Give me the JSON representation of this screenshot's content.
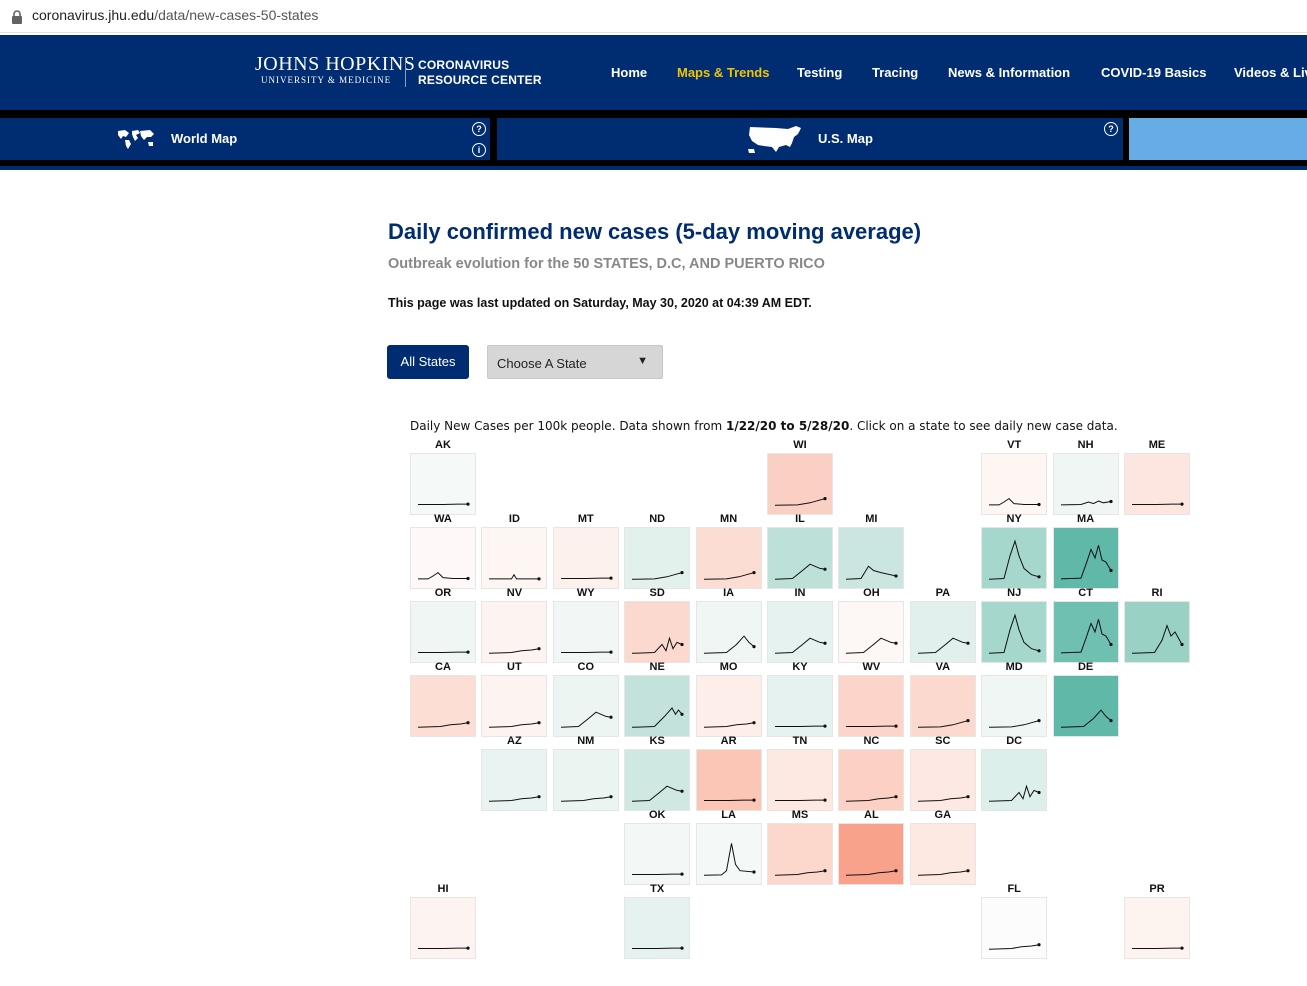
{
  "browser": {
    "url_domain": "coronavirus.jhu.edu",
    "url_path": "/data/new-cases-50-states"
  },
  "header": {
    "brand_line1": "JOHNS HOPKINS",
    "brand_line2": "UNIVERSITY & MEDICINE",
    "crc_line1": "CORONAVIRUS",
    "crc_line2": "RESOURCE CENTER",
    "menu": [
      "Home",
      "Maps & Trends",
      "Testing",
      "Tracing",
      "News & Information",
      "COVID-19 Basics",
      "Videos & Live"
    ],
    "active_menu": "Maps & Trends",
    "accent_color": "#f1c400",
    "navy_color": "#002d72"
  },
  "map_toggle": {
    "world_label": "World Map",
    "us_label": "U.S. Map"
  },
  "page": {
    "title": "Daily confirmed new cases (5-day moving average)",
    "subtitle": "Outbreak evolution for the 50 STATES, D.C, AND PUERTO RICO",
    "updated": "This page was last updated on Saturday, May 30, 2020 at 04:39 AM EDT."
  },
  "controls": {
    "all_states": "All States",
    "choose_state": "Choose A State"
  },
  "caption": {
    "pre": "Daily New Cases per 100k people. Data shown from ",
    "range": "1/22/20 to 5/28/20",
    "post": ". Click on a state to see daily new case data."
  },
  "states": [
    {
      "abbr": "AK",
      "row": 0,
      "col": 0,
      "color": "#f5f9f8",
      "trend": "flat"
    },
    {
      "abbr": "WI",
      "row": 0,
      "col": 5,
      "color": "#fbd0c4",
      "trend": "rise_late"
    },
    {
      "abbr": "VT",
      "row": 0,
      "col": 8,
      "color": "#fef6f3",
      "trend": "early_bump"
    },
    {
      "abbr": "NH",
      "row": 0,
      "col": 9,
      "color": "#eff6f4",
      "trend": "wiggle"
    },
    {
      "abbr": "ME",
      "row": 0,
      "col": 10,
      "color": "#fde6df",
      "trend": "flat"
    },
    {
      "abbr": "WA",
      "row": 1,
      "col": 0,
      "color": "#fef9f8",
      "trend": "early_bump"
    },
    {
      "abbr": "ID",
      "row": 1,
      "col": 1,
      "color": "#fdf6f3",
      "trend": "small_spike"
    },
    {
      "abbr": "MT",
      "row": 1,
      "col": 2,
      "color": "#fdf1ee",
      "trend": "flat"
    },
    {
      "abbr": "ND",
      "row": 1,
      "col": 3,
      "color": "#e3f1ed",
      "trend": "rise_late"
    },
    {
      "abbr": "MN",
      "row": 1,
      "col": 4,
      "color": "#fcddd3",
      "trend": "rise_late"
    },
    {
      "abbr": "IL",
      "row": 1,
      "col": 5,
      "color": "#bde0d9",
      "trend": "mid_hump"
    },
    {
      "abbr": "MI",
      "row": 1,
      "col": 6,
      "color": "#cbe6e0",
      "trend": "early_hump"
    },
    {
      "abbr": "NY",
      "row": 1,
      "col": 8,
      "color": "#a6d7cd",
      "trend": "big_peak"
    },
    {
      "abbr": "MA",
      "row": 1,
      "col": 9,
      "color": "#5fb8a8",
      "trend": "big_hump"
    },
    {
      "abbr": "OR",
      "row": 2,
      "col": 0,
      "color": "#eff6f4",
      "trend": "flat"
    },
    {
      "abbr": "NV",
      "row": 2,
      "col": 1,
      "color": "#fdf3f0",
      "trend": "small_rise"
    },
    {
      "abbr": "WY",
      "row": 2,
      "col": 2,
      "color": "#f2f7f6",
      "trend": "flat"
    },
    {
      "abbr": "SD",
      "row": 2,
      "col": 3,
      "color": "#fcd9cf",
      "trend": "spiky_late"
    },
    {
      "abbr": "IA",
      "row": 2,
      "col": 4,
      "color": "#eff6f4",
      "trend": "late_hump"
    },
    {
      "abbr": "IN",
      "row": 2,
      "col": 5,
      "color": "#e5f2ef",
      "trend": "mid_hump"
    },
    {
      "abbr": "OH",
      "row": 2,
      "col": 6,
      "color": "#fdf7f6",
      "trend": "mid_hump"
    },
    {
      "abbr": "PA",
      "row": 2,
      "col": 7,
      "color": "#e1f0ec",
      "trend": "mid_hump"
    },
    {
      "abbr": "NJ",
      "row": 2,
      "col": 8,
      "color": "#a6d7cd",
      "trend": "big_peak"
    },
    {
      "abbr": "CT",
      "row": 2,
      "col": 9,
      "color": "#6fc0b1",
      "trend": "big_hump"
    },
    {
      "abbr": "RI",
      "row": 2,
      "col": 10,
      "color": "#99d1c5",
      "trend": "late_peak"
    },
    {
      "abbr": "CA",
      "row": 3,
      "col": 0,
      "color": "#fcded5",
      "trend": "small_rise"
    },
    {
      "abbr": "UT",
      "row": 3,
      "col": 1,
      "color": "#fdf3f0",
      "trend": "small_rise"
    },
    {
      "abbr": "CO",
      "row": 3,
      "col": 2,
      "color": "#edf5f3",
      "trend": "mid_hump"
    },
    {
      "abbr": "NE",
      "row": 3,
      "col": 3,
      "color": "#c3e2dc",
      "trend": "late_spike"
    },
    {
      "abbr": "MO",
      "row": 3,
      "col": 4,
      "color": "#fdeeea",
      "trend": "small_rise"
    },
    {
      "abbr": "KY",
      "row": 3,
      "col": 5,
      "color": "#e5f2ef",
      "trend": "flat"
    },
    {
      "abbr": "WV",
      "row": 3,
      "col": 6,
      "color": "#fcd4c9",
      "trend": "flat"
    },
    {
      "abbr": "VA",
      "row": 3,
      "col": 7,
      "color": "#fcd9ce",
      "trend": "rise_late"
    },
    {
      "abbr": "MD",
      "row": 3,
      "col": 8,
      "color": "#eff6f4",
      "trend": "rise_late"
    },
    {
      "abbr": "DE",
      "row": 3,
      "col": 9,
      "color": "#5fb8a8",
      "trend": "late_hump"
    },
    {
      "abbr": "AZ",
      "row": 4,
      "col": 1,
      "color": "#e9f3f1",
      "trend": "small_rise"
    },
    {
      "abbr": "NM",
      "row": 4,
      "col": 2,
      "color": "#eaf4f1",
      "trend": "small_rise"
    },
    {
      "abbr": "KS",
      "row": 4,
      "col": 3,
      "color": "#cfe8e2",
      "trend": "mid_hump"
    },
    {
      "abbr": "AR",
      "row": 4,
      "col": 4,
      "color": "#fbc6b6",
      "trend": "flat"
    },
    {
      "abbr": "TN",
      "row": 4,
      "col": 5,
      "color": "#fde8e2",
      "trend": "flat"
    },
    {
      "abbr": "NC",
      "row": 4,
      "col": 6,
      "color": "#fcd0c3",
      "trend": "small_rise"
    },
    {
      "abbr": "SC",
      "row": 4,
      "col": 7,
      "color": "#fde8e3",
      "trend": "small_rise"
    },
    {
      "abbr": "DC",
      "row": 4,
      "col": 8,
      "color": "#dcefea",
      "trend": "spiky_late"
    },
    {
      "abbr": "OK",
      "row": 5,
      "col": 3,
      "color": "#f3f8f7",
      "trend": "flat"
    },
    {
      "abbr": "LA",
      "row": 5,
      "col": 4,
      "color": "#f4f9f8",
      "trend": "la_peak"
    },
    {
      "abbr": "MS",
      "row": 5,
      "col": 5,
      "color": "#fcd7cc",
      "trend": "small_rise"
    },
    {
      "abbr": "AL",
      "row": 5,
      "col": 6,
      "color": "#f8a28b",
      "trend": "small_rise"
    },
    {
      "abbr": "GA",
      "row": 5,
      "col": 7,
      "color": "#fde8e2",
      "trend": "small_rise"
    },
    {
      "abbr": "HI",
      "row": 6,
      "col": 0,
      "color": "#fdf4f2",
      "trend": "flat"
    },
    {
      "abbr": "TX",
      "row": 6,
      "col": 3,
      "color": "#e6f2ef",
      "trend": "flat"
    },
    {
      "abbr": "FL",
      "row": 6,
      "col": 8,
      "color": "#fcfcfc",
      "trend": "small_rise"
    },
    {
      "abbr": "PR",
      "row": 6,
      "col": 10,
      "color": "#fdf4f0",
      "trend": "flat"
    }
  ]
}
